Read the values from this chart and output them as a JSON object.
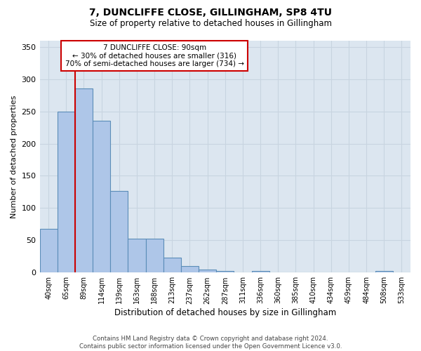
{
  "title": "7, DUNCLIFFE CLOSE, GILLINGHAM, SP8 4TU",
  "subtitle": "Size of property relative to detached houses in Gillingham",
  "xlabel": "Distribution of detached houses by size in Gillingham",
  "ylabel": "Number of detached properties",
  "categories": [
    "40sqm",
    "65sqm",
    "89sqm",
    "114sqm",
    "139sqm",
    "163sqm",
    "188sqm",
    "213sqm",
    "237sqm",
    "262sqm",
    "287sqm",
    "311sqm",
    "336sqm",
    "360sqm",
    "385sqm",
    "410sqm",
    "434sqm",
    "459sqm",
    "484sqm",
    "508sqm",
    "533sqm"
  ],
  "values": [
    68,
    250,
    286,
    235,
    127,
    53,
    53,
    23,
    10,
    5,
    3,
    0,
    3,
    0,
    0,
    0,
    0,
    0,
    0,
    3,
    0
  ],
  "bar_color": "#aec6e8",
  "bar_edge_color": "#5b8db8",
  "vline_color": "#cc0000",
  "vline_x": 1.5,
  "annotation_text": "7 DUNCLIFFE CLOSE: 90sqm\n← 30% of detached houses are smaller (316)\n70% of semi-detached houses are larger (734) →",
  "annotation_box_edgecolor": "#cc0000",
  "ylim_max": 360,
  "yticks": [
    0,
    50,
    100,
    150,
    200,
    250,
    300,
    350
  ],
  "grid_color": "#c8d4e0",
  "axes_bg_color": "#dce6f0",
  "footer_line1": "Contains HM Land Registry data © Crown copyright and database right 2024.",
  "footer_line2": "Contains public sector information licensed under the Open Government Licence v3.0."
}
